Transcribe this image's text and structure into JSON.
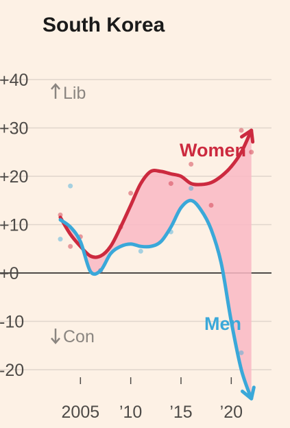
{
  "chart_data": {
    "type": "line",
    "title": "South Korea",
    "y_ticks": [
      40,
      30,
      20,
      10,
      0,
      -10,
      -20
    ],
    "y_tick_labels": [
      "+40",
      "+30",
      "+20",
      "+10",
      "+0",
      "-10",
      "-20"
    ],
    "x_ticks": [
      2005,
      2010,
      2015,
      2020
    ],
    "x_tick_labels": [
      "2005",
      "’10",
      "’15",
      "’20"
    ],
    "ylim": [
      -25,
      45
    ],
    "xlim": [
      2001.5,
      2024
    ],
    "grid": true,
    "annotations": {
      "up": "Lib",
      "down": "Con"
    },
    "series": [
      {
        "name": "Women",
        "color": "#cc2a3f",
        "points": [
          [
            2003,
            11.5
          ],
          [
            2004,
            8
          ],
          [
            2005,
            5.5
          ],
          [
            2006,
            3.5
          ],
          [
            2007,
            3.5
          ],
          [
            2008,
            5.5
          ],
          [
            2009,
            9.5
          ],
          [
            2010,
            14
          ],
          [
            2011,
            18.5
          ],
          [
            2012,
            21
          ],
          [
            2013,
            21
          ],
          [
            2014,
            20.5
          ],
          [
            2015,
            20
          ],
          [
            2016,
            18.5
          ],
          [
            2017,
            18.3
          ],
          [
            2018,
            18.7
          ],
          [
            2019,
            20
          ],
          [
            2020,
            22
          ],
          [
            2021,
            25
          ],
          [
            2022,
            29.5
          ]
        ],
        "dots": [
          [
            2003,
            12
          ],
          [
            2004,
            5.5
          ],
          [
            2005,
            7.5
          ],
          [
            2007,
            0.5
          ],
          [
            2009,
            9.5
          ],
          [
            2010,
            16.5
          ],
          [
            2014,
            18.5
          ],
          [
            2016,
            22.5
          ],
          [
            2018,
            14
          ],
          [
            2021,
            29.5
          ],
          [
            2022,
            25
          ]
        ]
      },
      {
        "name": "Men",
        "color": "#3aa8d9",
        "points": [
          [
            2003,
            11
          ],
          [
            2004,
            9.5
          ],
          [
            2005,
            6.5
          ],
          [
            2006,
            0.3
          ],
          [
            2007,
            0.5
          ],
          [
            2008,
            4
          ],
          [
            2009,
            5.5
          ],
          [
            2010,
            6
          ],
          [
            2011,
            5.5
          ],
          [
            2012,
            5.5
          ],
          [
            2013,
            6.5
          ],
          [
            2014,
            9.5
          ],
          [
            2015,
            13.5
          ],
          [
            2016,
            15
          ],
          [
            2017,
            13
          ],
          [
            2018,
            9
          ],
          [
            2019,
            2
          ],
          [
            2020,
            -10
          ],
          [
            2021,
            -20
          ],
          [
            2022,
            -26
          ]
        ],
        "dots": [
          [
            2003,
            7
          ],
          [
            2004,
            18
          ],
          [
            2007,
            0.5
          ],
          [
            2011,
            4.5
          ],
          [
            2014,
            8.5
          ],
          [
            2016,
            17.5
          ],
          [
            2021,
            -16.5
          ]
        ]
      }
    ]
  },
  "colors": {
    "fill_between": "#f9b8c4",
    "grid": "#e0d6cc",
    "zero_line": "#4d4a47",
    "background": "#fdf1e5"
  }
}
